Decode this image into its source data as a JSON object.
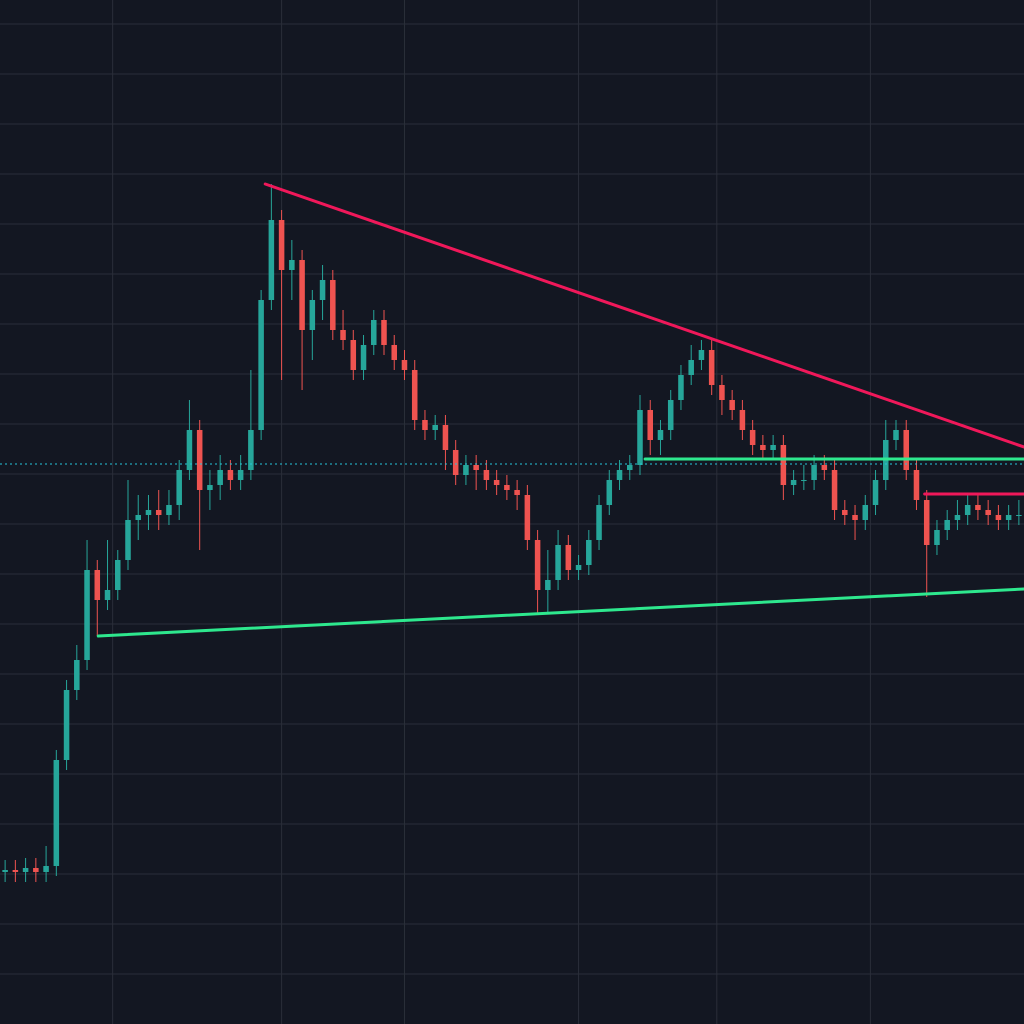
{
  "chart_data": {
    "type": "candlestick",
    "background": "#131722",
    "grid_color": "#2a2e39",
    "up_color": "#26a69a",
    "down_color": "#ef5350",
    "xlim": [
      -0.5,
      99.5
    ],
    "ylim": [
      0,
      102.4
    ],
    "xticks": [
      10.5,
      27,
      39,
      56,
      69.5,
      84.5
    ],
    "yticks": [
      5,
      10,
      15,
      20,
      25,
      30,
      35,
      40,
      45,
      50,
      55,
      60,
      65,
      70,
      75,
      80,
      85,
      90,
      95,
      100
    ],
    "grid": true,
    "open": [
      15.2,
      15.4,
      15.2,
      15.6,
      15.2,
      15.8,
      26.4,
      33.4,
      36.4,
      45.4,
      42.4,
      43.4,
      46.4,
      50.4,
      50.9,
      51.4,
      50.9,
      51.9,
      55.4,
      59.4,
      53.4,
      53.9,
      55.4,
      54.4,
      55.4,
      59.4,
      72.4,
      80.4,
      75.4,
      76.4,
      69.4,
      72.4,
      74.4,
      69.4,
      68.4,
      65.4,
      67.9,
      70.4,
      67.9,
      66.4,
      65.4,
      60.4,
      59.4,
      59.9,
      57.4,
      54.9,
      55.9,
      55.4,
      54.4,
      53.9,
      53.4,
      52.9,
      48.4,
      43.4,
      44.4,
      47.9,
      45.4,
      45.9,
      48.4,
      51.9,
      54.4,
      55.4,
      55.9,
      61.4,
      58.4,
      59.4,
      62.4,
      64.9,
      66.4,
      67.4,
      63.9,
      62.4,
      61.4,
      59.4,
      57.9,
      57.4,
      57.9,
      53.9,
      54.4,
      54.4,
      55.9,
      55.4,
      51.4,
      50.9,
      50.4,
      51.9,
      54.4,
      58.4,
      59.4,
      55.4,
      52.4,
      47.9,
      49.4,
      50.4,
      50.9,
      51.9,
      51.4,
      50.9,
      50.4,
      50.9
    ],
    "high": [
      16.4,
      16.4,
      16.6,
      16.6,
      17.8,
      27.4,
      34.4,
      37.9,
      48.4,
      46.4,
      48.4,
      47.4,
      54.4,
      52.9,
      52.9,
      53.4,
      53.4,
      56.4,
      62.4,
      60.4,
      55.4,
      56.9,
      56.4,
      56.9,
      65.4,
      73.4,
      84.0,
      81.4,
      78.4,
      77.4,
      73.4,
      75.9,
      75.4,
      71.4,
      69.4,
      68.9,
      71.4,
      71.4,
      68.9,
      67.4,
      66.4,
      61.4,
      60.9,
      60.9,
      58.4,
      56.9,
      56.9,
      56.4,
      55.4,
      54.9,
      54.4,
      53.9,
      49.4,
      47.4,
      49.4,
      48.9,
      46.9,
      49.4,
      52.9,
      55.4,
      56.4,
      56.9,
      62.9,
      62.4,
      60.4,
      63.4,
      65.9,
      67.9,
      68.4,
      68.4,
      64.9,
      63.4,
      62.4,
      60.4,
      58.9,
      58.9,
      58.9,
      55.4,
      55.9,
      56.9,
      56.9,
      56.4,
      52.4,
      51.9,
      52.9,
      55.4,
      60.4,
      60.4,
      60.4,
      56.4,
      53.4,
      50.4,
      51.4,
      52.4,
      52.9,
      52.9,
      52.4,
      51.9,
      51.9,
      52.4
    ],
    "low": [
      14.2,
      14.2,
      14.2,
      14.2,
      14.2,
      14.8,
      25.4,
      32.4,
      35.4,
      38.8,
      41.4,
      42.4,
      45.4,
      48.4,
      49.4,
      49.4,
      49.9,
      50.4,
      54.4,
      47.4,
      51.4,
      52.4,
      53.4,
      53.4,
      54.4,
      58.4,
      71.4,
      64.4,
      72.4,
      63.4,
      66.4,
      70.4,
      68.4,
      67.4,
      64.4,
      64.4,
      66.9,
      66.9,
      65.4,
      64.4,
      59.4,
      58.4,
      58.4,
      55.4,
      53.9,
      53.9,
      53.4,
      53.4,
      52.9,
      52.4,
      51.4,
      47.4,
      41.0,
      41.0,
      43.4,
      44.4,
      44.4,
      44.9,
      47.4,
      50.9,
      53.4,
      54.4,
      54.9,
      56.9,
      56.9,
      58.4,
      61.4,
      63.9,
      65.4,
      62.9,
      60.9,
      60.4,
      58.4,
      56.9,
      56.4,
      56.4,
      52.4,
      52.9,
      53.4,
      53.4,
      54.4,
      50.4,
      49.9,
      48.4,
      49.4,
      50.9,
      53.4,
      57.4,
      54.4,
      51.4,
      42.7,
      46.9,
      48.4,
      49.4,
      49.9,
      50.4,
      49.9,
      49.4,
      49.4,
      49.9
    ],
    "close": [
      15.4,
      15.2,
      15.6,
      15.2,
      15.8,
      26.4,
      33.4,
      36.4,
      45.4,
      42.4,
      43.4,
      46.4,
      50.4,
      50.9,
      51.4,
      50.9,
      51.9,
      55.4,
      59.4,
      53.4,
      53.9,
      55.4,
      54.4,
      55.4,
      59.4,
      72.4,
      80.4,
      75.4,
      76.4,
      69.4,
      72.4,
      74.4,
      69.4,
      68.4,
      65.4,
      67.9,
      70.4,
      67.9,
      66.4,
      65.4,
      60.4,
      59.4,
      59.9,
      57.4,
      54.9,
      55.9,
      55.4,
      54.4,
      53.9,
      53.4,
      52.9,
      48.4,
      43.4,
      44.4,
      47.9,
      45.4,
      45.9,
      48.4,
      51.9,
      54.4,
      55.4,
      55.9,
      61.4,
      58.4,
      59.4,
      62.4,
      64.9,
      66.4,
      67.4,
      63.9,
      62.4,
      61.4,
      59.4,
      57.9,
      57.4,
      57.9,
      53.9,
      54.4,
      54.4,
      55.9,
      55.4,
      51.4,
      50.9,
      50.4,
      51.9,
      54.4,
      58.4,
      59.4,
      55.4,
      52.4,
      47.9,
      49.4,
      50.4,
      50.9,
      51.9,
      51.4,
      50.9,
      50.4,
      50.9,
      50.9
    ],
    "price_line": {
      "value": 56.0,
      "color": "#26c6da"
    },
    "lines": [
      {
        "x": [
          25.4,
          99.5
        ],
        "y": [
          84.0,
          57.7
        ],
        "color": "#f0185a"
      },
      {
        "x": [
          9.1,
          99.5
        ],
        "y": [
          38.8,
          43.5
        ],
        "color": "#2ee88e"
      },
      {
        "x": [
          62.5,
          99.5
        ],
        "y": [
          56.5,
          56.5
        ],
        "color": "#2ee88e"
      },
      {
        "x": [
          89.8,
          99.5
        ],
        "y": [
          53.0,
          53.0
        ],
        "color": "#f0185a"
      }
    ]
  }
}
